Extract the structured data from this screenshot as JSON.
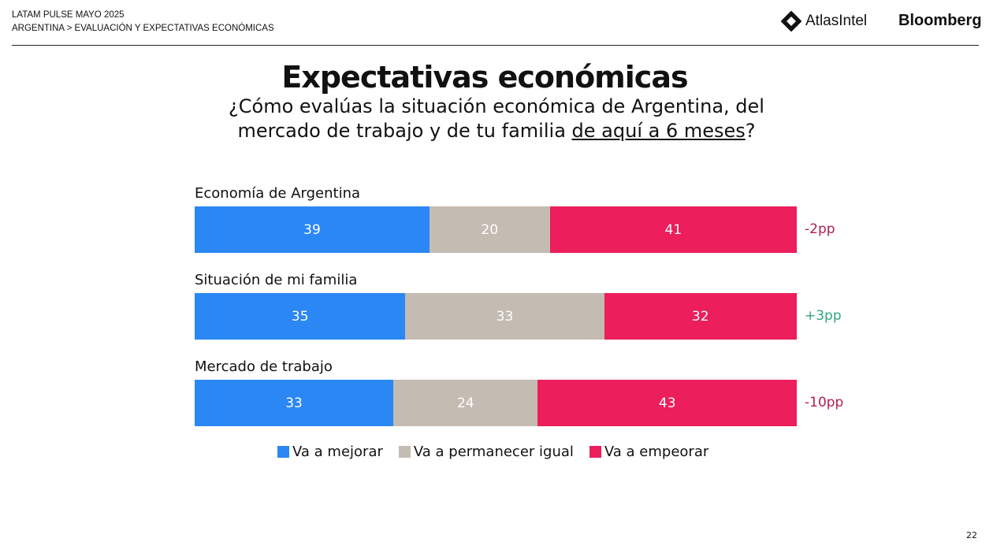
{
  "header": {
    "line1": "LATAM PULSE MAYO 2025",
    "line2": "ARGENTINA > EVALUACIÓN Y EXPECTATIVAS ECONÓMICAS",
    "logo1": "AtlasIntel",
    "logo2": "Bloomberg"
  },
  "page_number": "22",
  "chart_data": {
    "type": "bar",
    "stacked": true,
    "orientation": "horizontal",
    "title": "Expectativas económicas",
    "subtitle_a": "¿Cómo evalúas la situación económica de Argentina, del",
    "subtitle_b": "mercado de trabajo y de tu familia ",
    "subtitle_u": "de aquí a 6 meses",
    "subtitle_c": "?",
    "categories": [
      "Economía de Argentina",
      "Situación de mi familia",
      "Mercado de trabajo"
    ],
    "series": [
      {
        "name": "Va a mejorar",
        "color": "#2b87f4",
        "values": [
          39,
          35,
          33
        ]
      },
      {
        "name": "Va a permanecer igual",
        "color": "#c4bbb2",
        "values": [
          20,
          33,
          24
        ]
      },
      {
        "name": "Va a empeorar",
        "color": "#ec1e5b",
        "values": [
          41,
          32,
          43
        ]
      }
    ],
    "deltas": [
      {
        "text": "-2pp",
        "color": "#b02050"
      },
      {
        "text": "+3pp",
        "color": "#2ea57a"
      },
      {
        "text": "-10pp",
        "color": "#b02050"
      }
    ],
    "legend": "bottom"
  }
}
